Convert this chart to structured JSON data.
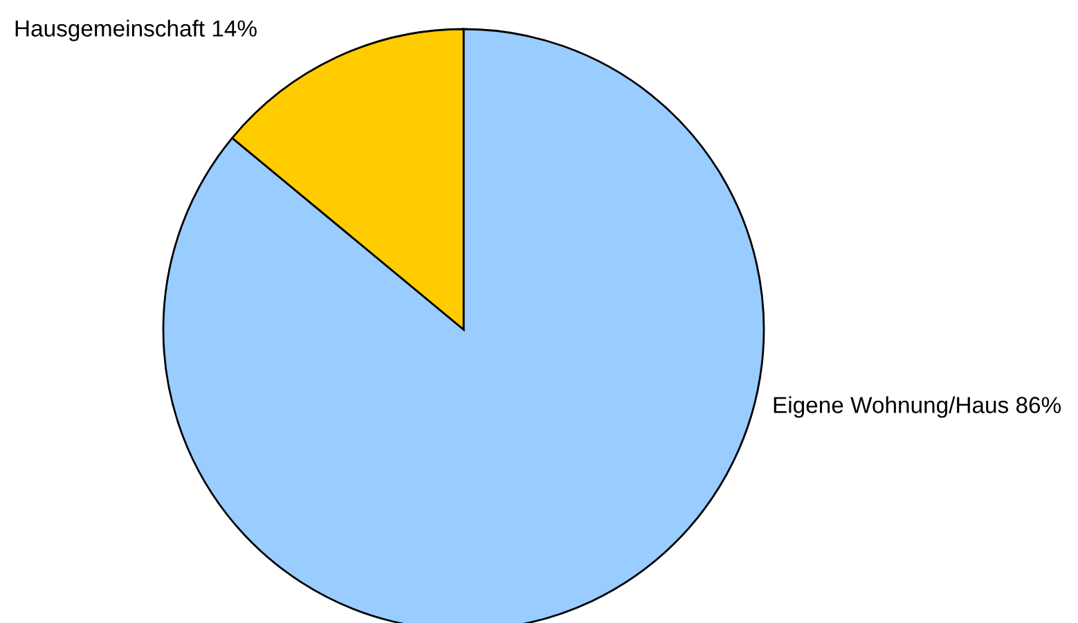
{
  "chart_data": {
    "type": "pie",
    "categories": [
      "Eigene Wohnung/Haus",
      "Hausgemeinschaft"
    ],
    "values": [
      86,
      14
    ],
    "colors": [
      "#99ccff",
      "#ffcc00"
    ],
    "value_labels": [
      "86%",
      "14%"
    ]
  }
}
